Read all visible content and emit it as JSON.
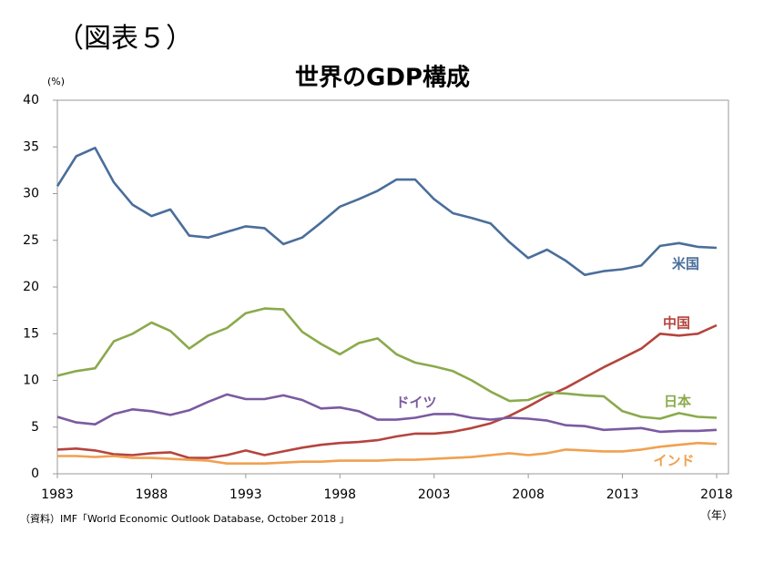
{
  "chart_data": {
    "type": "line",
    "label": "（図表５）",
    "title": "世界のGDP構成",
    "y_unit": "(%)",
    "x_unit": "（年）",
    "source": "（資料）IMF「World Economic Outlook Database, October 2018 」",
    "x": [
      1983,
      1984,
      1985,
      1986,
      1987,
      1988,
      1989,
      1990,
      1991,
      1992,
      1993,
      1994,
      1995,
      1996,
      1997,
      1998,
      1999,
      2000,
      2001,
      2002,
      2003,
      2004,
      2005,
      2006,
      2007,
      2008,
      2009,
      2010,
      2011,
      2012,
      2013,
      2014,
      2015,
      2016,
      2017,
      2018
    ],
    "xlim": [
      1983,
      2018
    ],
    "xticks": [
      1983,
      1988,
      1993,
      1998,
      2003,
      2008,
      2013,
      2018
    ],
    "ylim": [
      0,
      40
    ],
    "yticks": [
      0,
      5,
      10,
      15,
      20,
      25,
      30,
      35,
      40
    ],
    "grid": false,
    "series": [
      {
        "name": "米国",
        "color": "#4a6e9b",
        "values": [
          30.8,
          34.0,
          34.9,
          31.2,
          28.8,
          27.6,
          28.3,
          25.5,
          25.3,
          25.9,
          26.5,
          26.3,
          24.6,
          25.3,
          26.9,
          28.6,
          29.4,
          30.3,
          31.5,
          31.5,
          29.4,
          27.9,
          27.4,
          26.8,
          24.8,
          23.1,
          24.0,
          22.8,
          21.3,
          21.7,
          21.9,
          22.3,
          24.4,
          24.7,
          24.3,
          24.2
        ]
      },
      {
        "name": "中国",
        "color": "#b5443e",
        "values": [
          2.6,
          2.7,
          2.5,
          2.1,
          2.0,
          2.2,
          2.3,
          1.7,
          1.7,
          2.0,
          2.5,
          2.0,
          2.4,
          2.8,
          3.1,
          3.3,
          3.4,
          3.6,
          4.0,
          4.3,
          4.3,
          4.5,
          4.9,
          5.4,
          6.2,
          7.2,
          8.3,
          9.2,
          10.3,
          11.4,
          12.4,
          13.4,
          15.0,
          14.8,
          15.0,
          15.9
        ]
      },
      {
        "name": "日本",
        "color": "#8aaa4c",
        "values": [
          10.5,
          11.0,
          11.3,
          14.2,
          15.0,
          16.2,
          15.3,
          13.4,
          14.8,
          15.6,
          17.2,
          17.7,
          17.6,
          15.2,
          13.9,
          12.8,
          14.0,
          14.5,
          12.8,
          11.9,
          11.5,
          11.0,
          10.0,
          8.8,
          7.8,
          7.9,
          8.7,
          8.6,
          8.4,
          8.3,
          6.7,
          6.1,
          5.9,
          6.5,
          6.1,
          6.0
        ]
      },
      {
        "name": "ドイツ",
        "color": "#7b5aa0",
        "values": [
          6.1,
          5.5,
          5.3,
          6.4,
          6.9,
          6.7,
          6.3,
          6.8,
          7.7,
          8.5,
          8.0,
          8.0,
          8.4,
          7.9,
          7.0,
          7.1,
          6.7,
          5.8,
          5.8,
          6.0,
          6.4,
          6.4,
          6.0,
          5.8,
          6.0,
          5.9,
          5.7,
          5.2,
          5.1,
          4.7,
          4.8,
          4.9,
          4.5,
          4.6,
          4.6,
          4.7
        ]
      },
      {
        "name": "インド",
        "color": "#f0a050",
        "values": [
          1.9,
          1.9,
          1.8,
          1.9,
          1.7,
          1.7,
          1.6,
          1.5,
          1.4,
          1.1,
          1.1,
          1.1,
          1.2,
          1.3,
          1.3,
          1.4,
          1.4,
          1.4,
          1.5,
          1.5,
          1.6,
          1.7,
          1.8,
          2.0,
          2.2,
          2.0,
          2.2,
          2.6,
          2.5,
          2.4,
          2.4,
          2.6,
          2.9,
          3.1,
          3.3,
          3.2
        ]
      }
    ]
  }
}
